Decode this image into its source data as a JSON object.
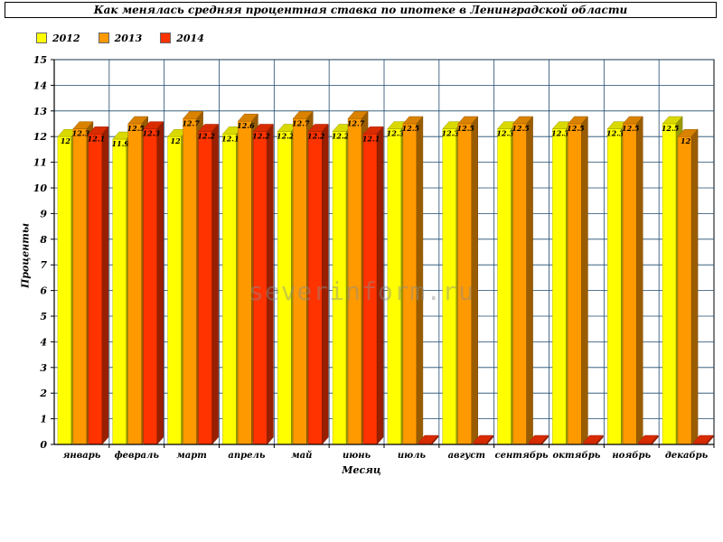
{
  "colors": {
    "s2012": "#ffff00",
    "s2013": "#ff9900",
    "s2014": "#ff3300",
    "grid": "#1f4a6e"
  },
  "watermark": "severinform.ru",
  "chart_data": {
    "type": "bar",
    "title": "Как менялась средняя процентная ставка по ипотеке в Ленинградской области",
    "xlabel": "Месяц",
    "ylabel": "Проценты",
    "ylim": [
      0,
      15
    ],
    "yticks": [
      "0",
      "1",
      "2",
      "3",
      "4",
      "5",
      "6",
      "7",
      "8",
      "9",
      "10",
      "11",
      "12",
      "13",
      "14",
      "15"
    ],
    "grid": true,
    "legend_position": "top-left",
    "categories": [
      "январь",
      "февраль",
      "март",
      "апрель",
      "май",
      "июнь",
      "июль",
      "август",
      "сентябрь",
      "октябрь",
      "ноябрь",
      "декабрь"
    ],
    "series": [
      {
        "name": "2012",
        "values": [
          12,
          11.9,
          12,
          12.1,
          12.2,
          12.2,
          12.3,
          12.3,
          12.3,
          12.3,
          12.3,
          12.5
        ],
        "labels": [
          "12",
          "11.9",
          "12",
          "12.1",
          "12.2",
          "12.2",
          "12.3",
          "12.3",
          "12.3",
          "12.3",
          "12.3",
          "12.5"
        ]
      },
      {
        "name": "2013",
        "values": [
          12.3,
          12.5,
          12.7,
          12.6,
          12.7,
          12.7,
          12.5,
          12.5,
          12.5,
          12.5,
          12.5,
          12
        ],
        "labels": [
          "12.3",
          "12.5",
          "12.7",
          "12.6",
          "12.7",
          "12.7",
          "12.5",
          "12.5",
          "12.5",
          "12.5",
          "12.5",
          "12"
        ]
      },
      {
        "name": "2014",
        "values": [
          12.1,
          12.3,
          12.2,
          12.2,
          12.2,
          12.1,
          0,
          0,
          0,
          0,
          0,
          0
        ],
        "labels": [
          "12.1",
          "12.3",
          "12.2",
          "12.2",
          "12.2",
          "12.1",
          "",
          "",
          "",
          "",
          "",
          ""
        ]
      }
    ]
  }
}
